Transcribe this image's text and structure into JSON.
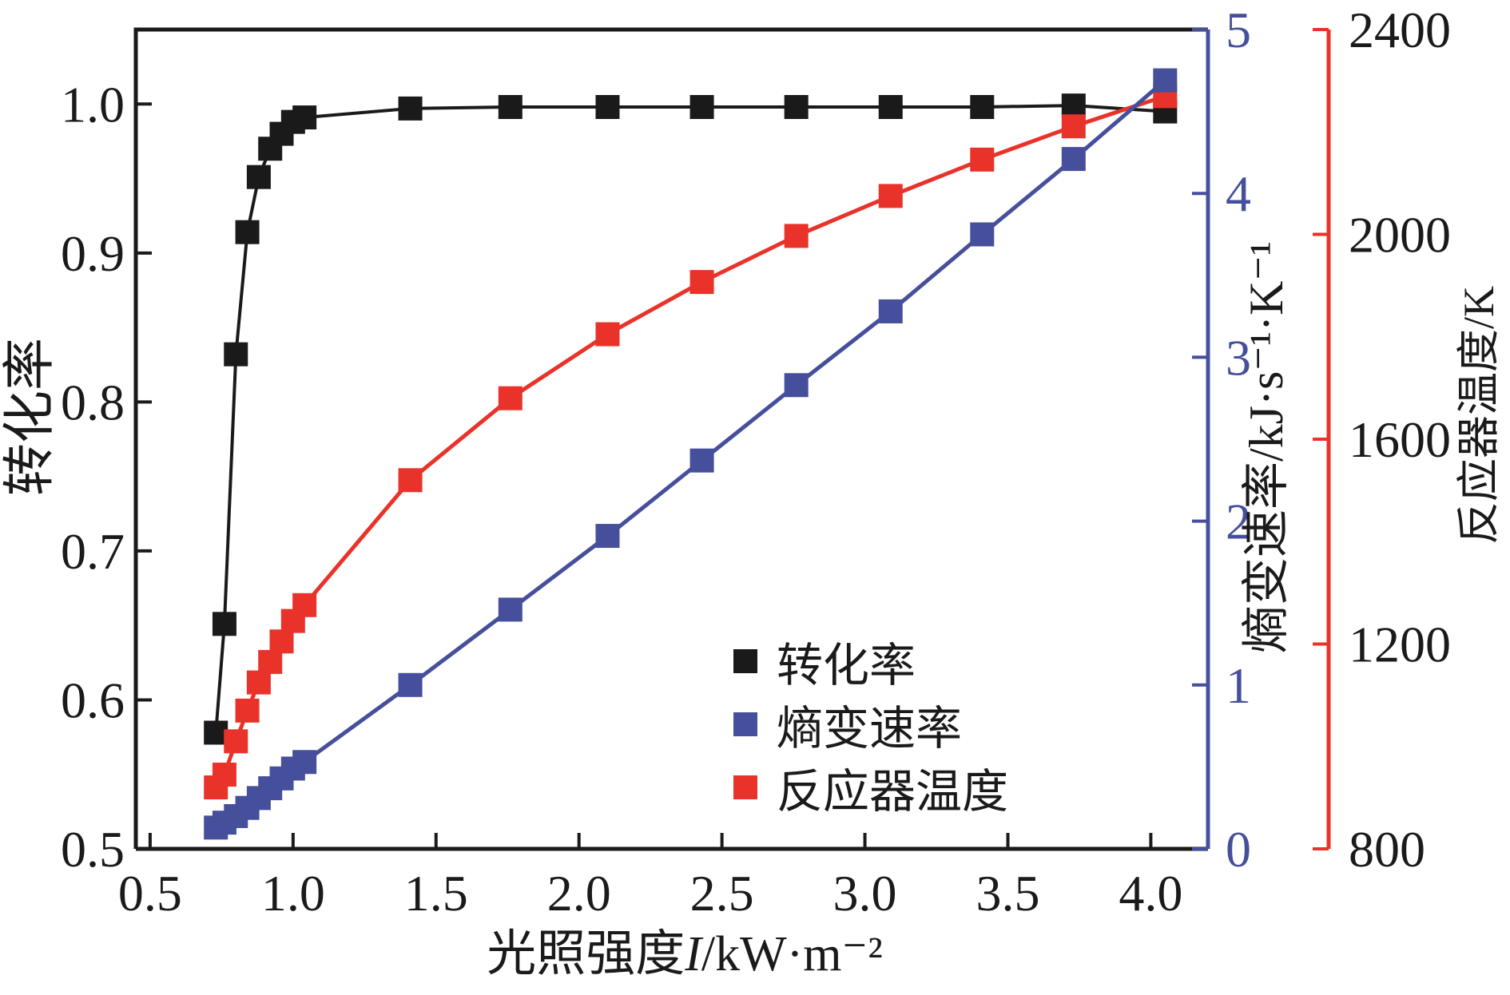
{
  "figure": {
    "axis_titles": {
      "left": "转化率",
      "bottom_prefix": "光照强度",
      "bottom_italic": "I",
      "bottom_suffix": "/kW·m⁻²",
      "right_blue": "熵变速率/kJ·s⁻¹·K⁻¹",
      "right_red": "反应器温度/K"
    },
    "legend": {
      "items": [
        {
          "label": "转化率",
          "color": "#1a1a1a"
        },
        {
          "label": "熵变速率",
          "color": "#454f9b"
        },
        {
          "label": "反应器温度",
          "color": "#e9332a"
        }
      ]
    }
  },
  "chart_data": {
    "type": "line",
    "title": "",
    "grid": false,
    "legend_position": "inside lower right",
    "x": [
      0.73,
      0.76,
      0.8,
      0.84,
      0.88,
      0.92,
      0.96,
      1.0,
      1.04,
      1.41,
      1.76,
      2.1,
      2.43,
      2.76,
      3.09,
      3.41,
      3.73,
      4.05
    ],
    "series": [
      {
        "id": "conversion-rate",
        "name": "转化率",
        "axis": "left",
        "color": "#1a1a1a",
        "marker": "square",
        "line_width": 4,
        "values": [
          0.578,
          0.651,
          0.832,
          0.914,
          0.951,
          0.97,
          0.98,
          0.988,
          0.991,
          0.997,
          0.998,
          0.998,
          0.998,
          0.998,
          0.998,
          0.998,
          0.999,
          0.995
        ]
      },
      {
        "id": "reactor-temperature",
        "name": "反应器温度",
        "axis": "red",
        "color": "#e9332a",
        "marker": "square",
        "line_width": 5,
        "values": [
          920,
          945,
          1010,
          1070,
          1125,
          1165,
          1205,
          1245,
          1276,
          1520,
          1680,
          1805,
          1907,
          1997,
          2075,
          2146,
          2211,
          2270
        ]
      },
      {
        "id": "entropy-rate",
        "name": "熵变速率",
        "axis": "blue",
        "color": "#454f9b",
        "marker": "square",
        "line_width": 5,
        "values": [
          0.13,
          0.16,
          0.2,
          0.25,
          0.31,
          0.37,
          0.43,
          0.49,
          0.53,
          1.0,
          1.46,
          1.91,
          2.37,
          2.83,
          3.28,
          3.75,
          4.21,
          4.69
        ]
      }
    ],
    "axes": {
      "x": {
        "label": "光照强度I/kW·m⁻²",
        "range": [
          0.45,
          4.2
        ],
        "ticks": [
          0.5,
          1.0,
          1.5,
          2.0,
          2.5,
          3.0,
          3.5,
          4.0
        ],
        "tick_labels": [
          "0.5",
          "1.0",
          "1.5",
          "2.0",
          "2.5",
          "3.0",
          "3.5",
          "4.0"
        ],
        "tick_color": "#1a1a1a",
        "line_color": "#1a1a1a"
      },
      "left": {
        "label": "转化率",
        "range": [
          0.5,
          1.05
        ],
        "ticks": [
          0.5,
          0.6,
          0.7,
          0.8,
          0.9,
          1.0
        ],
        "tick_labels": [
          "0.5",
          "0.6",
          "0.7",
          "0.8",
          "0.9",
          "1.0"
        ],
        "tick_color": "#1a1a1a",
        "line_color": "#1a1a1a"
      },
      "blue": {
        "label": "熵变速率/kJ·s⁻¹·K⁻¹",
        "range": [
          0,
          5
        ],
        "ticks": [
          0,
          1,
          2,
          3,
          4,
          5
        ],
        "tick_labels": [
          "0",
          "1",
          "2",
          "3",
          "4",
          "5"
        ],
        "tick_color": "#454f9b",
        "line_color": "#454f9b"
      },
      "red": {
        "label": "反应器温度/K",
        "range": [
          800,
          2400
        ],
        "ticks": [
          800,
          1200,
          1600,
          2000,
          2400
        ],
        "tick_labels": [
          "800",
          "1200",
          "1600",
          "2000",
          "2400"
        ],
        "tick_color": "#1a1a1a",
        "line_color": "#e9332a"
      }
    }
  }
}
